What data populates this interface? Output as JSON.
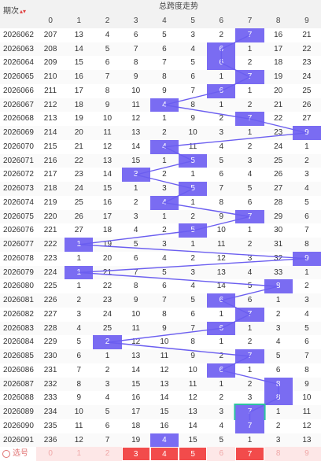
{
  "header": {
    "issue_label": "期次",
    "sort_icon": "sort-up-down-icon",
    "title": "总跨度走势",
    "columns": [
      "0",
      "1",
      "2",
      "3",
      "4",
      "5",
      "6",
      "7",
      "8",
      "9"
    ]
  },
  "rows": [
    {
      "issue": "2026062",
      "vals": [
        "207",
        "13",
        "4",
        "6",
        "5",
        "3",
        "2",
        "7",
        "16",
        "21"
      ],
      "hit": 7
    },
    {
      "issue": "2026063",
      "vals": [
        "208",
        "14",
        "5",
        "7",
        "6",
        "4",
        "6",
        "1",
        "17",
        "22"
      ],
      "hit": 6
    },
    {
      "issue": "2026064",
      "vals": [
        "209",
        "15",
        "6",
        "8",
        "7",
        "5",
        "6",
        "2",
        "18",
        "23"
      ],
      "hit": 6
    },
    {
      "issue": "2026065",
      "vals": [
        "210",
        "16",
        "7",
        "9",
        "8",
        "6",
        "1",
        "7",
        "19",
        "24"
      ],
      "hit": 7
    },
    {
      "issue": "2026066",
      "vals": [
        "211",
        "17",
        "8",
        "10",
        "9",
        "7",
        "6",
        "1",
        "20",
        "25"
      ],
      "hit": 6
    },
    {
      "issue": "2026067",
      "vals": [
        "212",
        "18",
        "9",
        "11",
        "4",
        "8",
        "1",
        "2",
        "21",
        "26"
      ],
      "hit": 4
    },
    {
      "issue": "2026068",
      "vals": [
        "213",
        "19",
        "10",
        "12",
        "1",
        "9",
        "2",
        "7",
        "22",
        "27"
      ],
      "hit": 7
    },
    {
      "issue": "2026069",
      "vals": [
        "214",
        "20",
        "11",
        "13",
        "2",
        "10",
        "3",
        "1",
        "23",
        "9"
      ],
      "hit": 9
    },
    {
      "issue": "2026070",
      "vals": [
        "215",
        "21",
        "12",
        "14",
        "4",
        "11",
        "4",
        "2",
        "24",
        "1"
      ],
      "hit": 4
    },
    {
      "issue": "2026071",
      "vals": [
        "216",
        "22",
        "13",
        "15",
        "1",
        "5",
        "5",
        "3",
        "25",
        "2"
      ],
      "hit": 5
    },
    {
      "issue": "2026072",
      "vals": [
        "217",
        "23",
        "14",
        "3",
        "2",
        "1",
        "6",
        "4",
        "26",
        "3"
      ],
      "hit": 3
    },
    {
      "issue": "2026073",
      "vals": [
        "218",
        "24",
        "15",
        "1",
        "3",
        "5",
        "7",
        "5",
        "27",
        "4"
      ],
      "hit": 5
    },
    {
      "issue": "2026074",
      "vals": [
        "219",
        "25",
        "16",
        "2",
        "4",
        "1",
        "8",
        "6",
        "28",
        "5"
      ],
      "hit": 4
    },
    {
      "issue": "2026075",
      "vals": [
        "220",
        "26",
        "17",
        "3",
        "1",
        "2",
        "9",
        "7",
        "29",
        "6"
      ],
      "hit": 7
    },
    {
      "issue": "2026076",
      "vals": [
        "221",
        "27",
        "18",
        "4",
        "2",
        "5",
        "10",
        "1",
        "30",
        "7"
      ],
      "hit": 5
    },
    {
      "issue": "2026077",
      "vals": [
        "222",
        "1",
        "19",
        "5",
        "3",
        "1",
        "11",
        "2",
        "31",
        "8"
      ],
      "hit": 1
    },
    {
      "issue": "2026078",
      "vals": [
        "223",
        "1",
        "20",
        "6",
        "4",
        "2",
        "12",
        "3",
        "32",
        "9"
      ],
      "hit": 9
    },
    {
      "issue": "2026079",
      "vals": [
        "224",
        "1",
        "21",
        "7",
        "5",
        "3",
        "13",
        "4",
        "33",
        "1"
      ],
      "hit": 1
    },
    {
      "issue": "2026080",
      "vals": [
        "225",
        "1",
        "22",
        "8",
        "6",
        "4",
        "14",
        "5",
        "8",
        "2"
      ],
      "hit": 8
    },
    {
      "issue": "2026081",
      "vals": [
        "226",
        "2",
        "23",
        "9",
        "7",
        "5",
        "6",
        "6",
        "1",
        "3"
      ],
      "hit": 6
    },
    {
      "issue": "2026082",
      "vals": [
        "227",
        "3",
        "24",
        "10",
        "8",
        "6",
        "1",
        "7",
        "2",
        "4"
      ],
      "hit": 7
    },
    {
      "issue": "2026083",
      "vals": [
        "228",
        "4",
        "25",
        "11",
        "9",
        "7",
        "6",
        "1",
        "3",
        "5"
      ],
      "hit": 6
    },
    {
      "issue": "2026084",
      "vals": [
        "229",
        "5",
        "2",
        "12",
        "10",
        "8",
        "1",
        "2",
        "4",
        "6"
      ],
      "hit": 2
    },
    {
      "issue": "2026085",
      "vals": [
        "230",
        "6",
        "1",
        "13",
        "11",
        "9",
        "2",
        "7",
        "5",
        "7"
      ],
      "hit": 7
    },
    {
      "issue": "2026086",
      "vals": [
        "231",
        "7",
        "2",
        "14",
        "12",
        "10",
        "6",
        "1",
        "6",
        "8"
      ],
      "hit": 6
    },
    {
      "issue": "2026087",
      "vals": [
        "232",
        "8",
        "3",
        "15",
        "13",
        "11",
        "1",
        "2",
        "8",
        "9"
      ],
      "hit": 8
    },
    {
      "issue": "2026088",
      "vals": [
        "233",
        "9",
        "4",
        "16",
        "14",
        "12",
        "2",
        "3",
        "8",
        "10"
      ],
      "hit": 8
    },
    {
      "issue": "2026089",
      "vals": [
        "234",
        "10",
        "5",
        "17",
        "15",
        "13",
        "3",
        "7",
        "1",
        "11"
      ],
      "hit": 7
    },
    {
      "issue": "2026090",
      "vals": [
        "235",
        "11",
        "6",
        "18",
        "16",
        "14",
        "4",
        "7",
        "2",
        "12"
      ],
      "hit": 7
    },
    {
      "issue": "2026091",
      "vals": [
        "236",
        "12",
        "7",
        "19",
        "4",
        "15",
        "5",
        "1",
        "3",
        "13"
      ],
      "hit": 4
    }
  ],
  "pick_row": {
    "radio_icon": "radio-circle-icon",
    "label": "选号",
    "vals": [
      "0",
      "1",
      "2",
      "3",
      "4",
      "5",
      "6",
      "7",
      "8",
      "9"
    ],
    "selected": [
      3,
      4,
      5,
      7
    ]
  },
  "colors": {
    "highlight": "#7a6cf2",
    "trend_line": "#6b5ef0",
    "predict_box": "#2ec4a0",
    "pick_selected": "#f24b4b",
    "pick_row_bg": "#fde7e7"
  }
}
